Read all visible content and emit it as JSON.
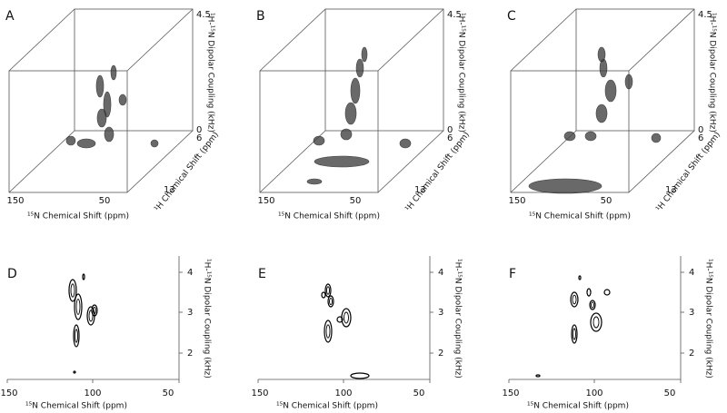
{
  "panels_3d": [
    {
      "label": "A",
      "x_label": "¹⁵N Chemical Shift (ppm)",
      "x_ticks": [
        "150",
        "50"
      ],
      "h_label": "¹H Chemical Shift (ppm)",
      "h_ticks": [
        "6",
        "13"
      ],
      "z_label": "¹H-¹⁵N Dipolar Coupling (kHz)",
      "z_ticks": [
        "4.5",
        "0"
      ]
    },
    {
      "label": "B",
      "x_label": "¹⁵N Chemical Shift (ppm)",
      "x_ticks": [
        "150",
        "50"
      ],
      "h_label": "¹H Chemical Shift (ppm)",
      "h_ticks": [
        "6",
        "13"
      ],
      "z_label": "¹H-¹⁵N Dipolar Coupling (kHz)",
      "z_ticks": [
        "4.5",
        "0"
      ]
    },
    {
      "label": "C",
      "x_label": "¹⁵N Chemical Shift (ppm)",
      "x_ticks": [
        "150",
        "50"
      ],
      "h_label": "¹H Chemical Shift (ppm)",
      "h_ticks": [
        "6",
        "13"
      ],
      "z_label": "¹H-¹⁵N Dipolar Coupling (kHz)",
      "z_ticks": [
        "4.5",
        "0"
      ]
    }
  ],
  "panels_2d": [
    {
      "label": "D",
      "x_label": "¹⁵N Chemical Shift (ppm)",
      "x_ticks": [
        "150",
        "100",
        "50"
      ],
      "y_label": "¹H-¹⁵N Dipolar Coupling (kHz)",
      "y_ticks": [
        "4",
        "3",
        "2"
      ]
    },
    {
      "label": "E",
      "x_label": "¹⁵N Chemical Shift (ppm)",
      "x_ticks": [
        "150",
        "100",
        "50"
      ],
      "y_label": "¹H-¹⁵N Dipolar Coupling (kHz)",
      "y_ticks": [
        "4",
        "3",
        "2"
      ]
    },
    {
      "label": "F",
      "x_label": "¹⁵N Chemical Shift (ppm)",
      "x_ticks": [
        "150",
        "100",
        "50"
      ],
      "y_label": "¹H-¹⁵N Dipolar Coupling (kHz)",
      "y_ticks": [
        "4",
        "3",
        "2"
      ]
    }
  ]
}
